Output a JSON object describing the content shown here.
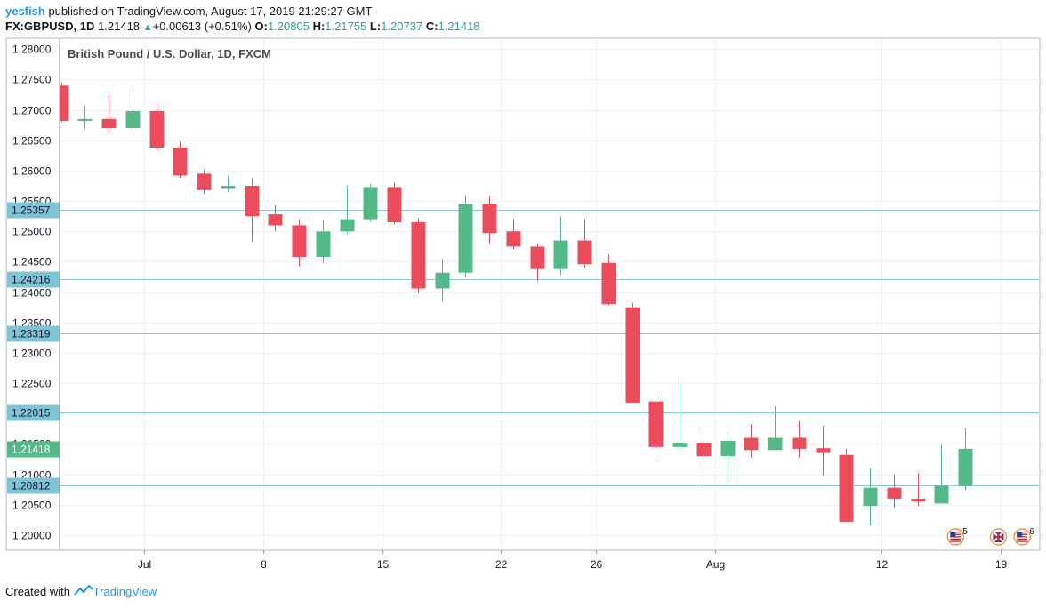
{
  "header": {
    "user": "yesfish",
    "published": "published on TradingView.com, August 17, 2019 21:29:27 GMT",
    "symbol": "FX:GBPUSD, 1D",
    "last": "1.21418",
    "change": "+0.00613 (+0.51%)",
    "o_label": "O:",
    "o_value": "1.20805",
    "h_label": "H:",
    "h_value": "1.21755",
    "l_label": "L:",
    "l_value": "1.20737",
    "c_label": "C:",
    "c_value": "1.21418"
  },
  "footer": {
    "created_with": "Created with",
    "brand": "TradingView"
  },
  "chart_data": {
    "type": "candlestick",
    "title": "British Pound / U.S. Dollar, 1D, FXCM",
    "ylim": [
      1.1975,
      1.2818
    ],
    "y_ticks": [
      "1.28000",
      "1.27500",
      "1.27000",
      "1.26500",
      "1.26000",
      "1.25500",
      "1.25000",
      "1.24500",
      "1.24000",
      "1.23500",
      "1.23000",
      "1.22500",
      "1.22000",
      "1.21500",
      "1.21000",
      "1.20500",
      "1.20000"
    ],
    "x_ticks": [
      {
        "label": "Jul",
        "index": 3.5
      },
      {
        "label": "8",
        "index": 8.5
      },
      {
        "label": "15",
        "index": 13.5
      },
      {
        "label": "22",
        "index": 18.5
      },
      {
        "label": "26",
        "index": 22.5
      },
      {
        "label": "Aug",
        "index": 27.5
      },
      {
        "label": "12",
        "index": 34.5
      },
      {
        "label": "19",
        "index": 39.5
      }
    ],
    "horizontal_levels": [
      "1.25357",
      "1.24216",
      "1.23319",
      "1.22015",
      "1.20812"
    ],
    "last_price": "1.21418",
    "grid": true,
    "up_color": "#53b987",
    "down_color": "#eb4d5c",
    "level_color": "#8fc9d6",
    "candles": [
      {
        "o": 1.274,
        "h": 1.2745,
        "l": 1.268,
        "c": 1.2682
      },
      {
        "o": 1.2682,
        "h": 1.2708,
        "l": 1.2668,
        "c": 1.2685
      },
      {
        "o": 1.2685,
        "h": 1.2725,
        "l": 1.2663,
        "c": 1.267
      },
      {
        "o": 1.267,
        "h": 1.2737,
        "l": 1.2665,
        "c": 1.2698
      },
      {
        "o": 1.2698,
        "h": 1.271,
        "l": 1.2632,
        "c": 1.2638
      },
      {
        "o": 1.2638,
        "h": 1.2648,
        "l": 1.2588,
        "c": 1.2592
      },
      {
        "o": 1.2595,
        "h": 1.2602,
        "l": 1.2562,
        "c": 1.2568
      },
      {
        "o": 1.257,
        "h": 1.2592,
        "l": 1.2565,
        "c": 1.2575
      },
      {
        "o": 1.2575,
        "h": 1.2588,
        "l": 1.2483,
        "c": 1.2525
      },
      {
        "o": 1.2528,
        "h": 1.2543,
        "l": 1.25,
        "c": 1.251
      },
      {
        "o": 1.251,
        "h": 1.252,
        "l": 1.2443,
        "c": 1.2458
      },
      {
        "o": 1.2458,
        "h": 1.2518,
        "l": 1.2448,
        "c": 1.25
      },
      {
        "o": 1.25,
        "h": 1.2575,
        "l": 1.2496,
        "c": 1.252
      },
      {
        "o": 1.252,
        "h": 1.2578,
        "l": 1.2516,
        "c": 1.2573
      },
      {
        "o": 1.2573,
        "h": 1.258,
        "l": 1.2512,
        "c": 1.2515
      },
      {
        "o": 1.2515,
        "h": 1.2522,
        "l": 1.2398,
        "c": 1.2406
      },
      {
        "o": 1.2406,
        "h": 1.2455,
        "l": 1.2384,
        "c": 1.2432
      },
      {
        "o": 1.2432,
        "h": 1.256,
        "l": 1.2424,
        "c": 1.2545
      },
      {
        "o": 1.2545,
        "h": 1.2558,
        "l": 1.248,
        "c": 1.2497
      },
      {
        "o": 1.25,
        "h": 1.252,
        "l": 1.247,
        "c": 1.2475
      },
      {
        "o": 1.2475,
        "h": 1.248,
        "l": 1.2418,
        "c": 1.2438
      },
      {
        "o": 1.2438,
        "h": 1.2525,
        "l": 1.2428,
        "c": 1.2485
      },
      {
        "o": 1.2485,
        "h": 1.252,
        "l": 1.244,
        "c": 1.2446
      },
      {
        "o": 1.2448,
        "h": 1.2462,
        "l": 1.2378,
        "c": 1.238
      },
      {
        "o": 1.2375,
        "h": 1.2382,
        "l": 1.2218,
        "c": 1.2218
      },
      {
        "o": 1.222,
        "h": 1.2228,
        "l": 1.2128,
        "c": 1.2145
      },
      {
        "o": 1.2145,
        "h": 1.2252,
        "l": 1.2138,
        "c": 1.2152
      },
      {
        "o": 1.2152,
        "h": 1.2172,
        "l": 1.2082,
        "c": 1.213
      },
      {
        "o": 1.213,
        "h": 1.2168,
        "l": 1.2088,
        "c": 1.2155
      },
      {
        "o": 1.216,
        "h": 1.2182,
        "l": 1.2128,
        "c": 1.214
      },
      {
        "o": 1.214,
        "h": 1.2212,
        "l": 1.214,
        "c": 1.216
      },
      {
        "o": 1.216,
        "h": 1.2188,
        "l": 1.2128,
        "c": 1.2142
      },
      {
        "o": 1.2143,
        "h": 1.218,
        "l": 1.2098,
        "c": 1.2135
      },
      {
        "o": 1.2132,
        "h": 1.2142,
        "l": 1.2022,
        "c": 1.2022
      },
      {
        "o": 1.2048,
        "h": 1.211,
        "l": 1.2016,
        "c": 1.2078
      },
      {
        "o": 1.2078,
        "h": 1.21,
        "l": 1.2045,
        "c": 1.206
      },
      {
        "o": 1.206,
        "h": 1.2102,
        "l": 1.2048,
        "c": 1.2055
      },
      {
        "o": 1.2052,
        "h": 1.215,
        "l": 1.2052,
        "c": 1.2081
      },
      {
        "o": 1.2081,
        "h": 1.2176,
        "l": 1.2074,
        "c": 1.2142
      }
    ],
    "event_markers": [
      {
        "flag": "us-flag-icon",
        "count": "5",
        "index": 37.6
      },
      {
        "flag": "uk-flag-icon",
        "count": "",
        "index": 39.4
      },
      {
        "flag": "us-flag-icon",
        "count": "6",
        "index": 40.4
      }
    ]
  }
}
